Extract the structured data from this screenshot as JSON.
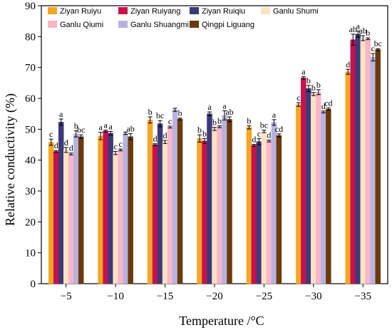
{
  "chart_data": {
    "type": "bar",
    "xlabel": "Temperature /°C",
    "ylabel": "Relative conductivity (%)",
    "ylim": [
      0,
      90
    ],
    "yticks": [
      "0",
      "10",
      "20",
      "30",
      "40",
      "50",
      "60",
      "70",
      "80",
      "90"
    ],
    "categories": [
      "−5",
      "−10",
      "−15",
      "−20",
      "−25",
      "−30",
      "−35"
    ],
    "legend_position": "top, two rows",
    "series": [
      {
        "name": "Ziyan Ruiyu",
        "color": "#F5A623",
        "values": [
          45.8,
          47.8,
          53.0,
          47.0,
          50.6,
          58.0,
          68.6
        ],
        "errors": [
          1.0,
          1.2,
          1.0,
          1.2,
          0.5,
          0.6,
          0.8
        ],
        "letters": [
          "c",
          "a",
          "b",
          "b",
          "b",
          "c",
          "d"
        ]
      },
      {
        "name": "Ziyan Ruiyang",
        "color": "#C8104F",
        "values": [
          42.8,
          49.4,
          45.0,
          46.2,
          44.8,
          66.6,
          79.0
        ],
        "errors": [
          0.3,
          0.3,
          0.3,
          0.8,
          0.3,
          0.4,
          1.8
        ],
        "letters": [
          "d",
          "a",
          "d",
          "b",
          "d",
          "a",
          "ab"
        ]
      },
      {
        "name": "Ziyan Ruiqiu",
        "color": "#3C3A78",
        "values": [
          52.3,
          48.7,
          51.8,
          55.0,
          46.0,
          63.2,
          80.8
        ],
        "errors": [
          1.0,
          0.6,
          1.0,
          0.6,
          1.0,
          1.0,
          1.0
        ],
        "letters": [
          "a",
          "a",
          "bc",
          "a",
          "c",
          "b",
          "a"
        ]
      },
      {
        "name": "Ganlu Shumi",
        "color": "#FCE2C3",
        "values": [
          43.3,
          42.3,
          45.9,
          50.1,
          49.3,
          61.4,
          79.5
        ],
        "errors": [
          0.8,
          0.5,
          0.5,
          0.5,
          0.4,
          0.5,
          0.8
        ],
        "letters": [
          "d",
          "c",
          "d",
          "b",
          "bc",
          "b",
          "ab"
        ]
      },
      {
        "name": "Ganlu Qiumi",
        "color": "#F8B6C8",
        "values": [
          42.0,
          43.3,
          50.7,
          50.8,
          46.2,
          62.0,
          79.3
        ],
        "errors": [
          0.3,
          0.3,
          0.3,
          0.3,
          0.3,
          0.8,
          0.3
        ],
        "letters": [
          "d",
          "c",
          "c",
          "b",
          "d",
          "b",
          "b"
        ]
      },
      {
        "name": "Ganlu Shuangmi",
        "color": "#B8B2E2",
        "values": [
          48.5,
          48.7,
          56.3,
          54.5,
          52.2,
          55.6,
          73.3
        ],
        "errors": [
          1.0,
          0.4,
          0.5,
          1.5,
          0.9,
          0.3,
          1.2
        ],
        "letters": [
          "b",
          "",
          "",
          "a",
          "a",
          "d",
          "c"
        ]
      },
      {
        "name": "Qingpi Liguang",
        "color": "#6B3A0A",
        "values": [
          47.6,
          47.6,
          53.3,
          53.2,
          48.0,
          56.5,
          75.8
        ],
        "errors": [
          0.6,
          1.0,
          0.3,
          0.8,
          0.5,
          0.4,
          0.3
        ],
        "letters": [
          "bc",
          "ab",
          "b",
          "ab",
          "cd",
          "cd",
          "bc"
        ]
      }
    ]
  }
}
